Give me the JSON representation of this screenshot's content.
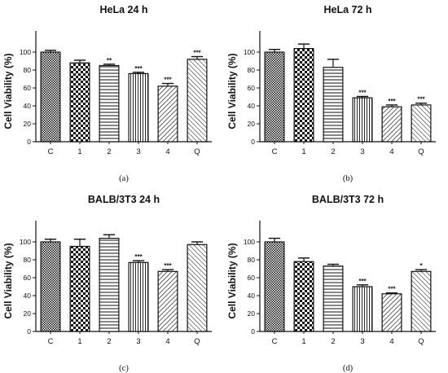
{
  "chart_data": [
    {
      "type": "bar",
      "title": "HeLa 24 h",
      "ylabel": "Cell Viability (%)",
      "xlabel": "",
      "ylim": [
        0,
        120
      ],
      "yticks": [
        0,
        20,
        40,
        60,
        80,
        100
      ],
      "categories": [
        "C",
        "1",
        "2",
        "3",
        "4",
        "Q"
      ],
      "values": [
        100,
        88,
        85,
        76,
        62,
        92
      ],
      "errors": [
        2,
        3,
        1.5,
        1.5,
        3,
        3
      ],
      "significance": [
        "",
        "",
        "**",
        "***",
        "***",
        "***"
      ],
      "caption": "(a)"
    },
    {
      "type": "bar",
      "title": "HeLa 72 h",
      "ylabel": "Cell Viability (%)",
      "xlabel": "",
      "ylim": [
        0,
        120
      ],
      "yticks": [
        0,
        20,
        40,
        60,
        80,
        100
      ],
      "categories": [
        "C",
        "1",
        "2",
        "3",
        "4",
        "Q"
      ],
      "values": [
        100,
        104,
        83,
        49,
        39,
        41
      ],
      "errors": [
        3,
        5,
        9,
        1.5,
        2,
        2
      ],
      "significance": [
        "",
        "",
        "",
        "***",
        "***",
        "***"
      ],
      "caption": "(b)"
    },
    {
      "type": "bar",
      "title": "BALB/3T3 24 h",
      "ylabel": "Cell Viability (%)",
      "xlabel": "",
      "ylim": [
        0,
        120
      ],
      "yticks": [
        0,
        20,
        40,
        60,
        80,
        100
      ],
      "categories": [
        "C",
        "1",
        "2",
        "3",
        "4",
        "Q"
      ],
      "values": [
        100,
        95,
        104,
        77,
        67,
        97
      ],
      "errors": [
        3,
        8,
        4,
        2,
        2,
        3
      ],
      "significance": [
        "",
        "",
        "",
        "***",
        "***",
        ""
      ],
      "caption": "(c)"
    },
    {
      "type": "bar",
      "title": "BALB/3T3 72 h",
      "ylabel": "Cell Viability (%)",
      "xlabel": "",
      "ylim": [
        0,
        120
      ],
      "yticks": [
        0,
        20,
        40,
        60,
        80,
        100
      ],
      "categories": [
        "C",
        "1",
        "2",
        "3",
        "4",
        "Q"
      ],
      "values": [
        100,
        78,
        73,
        50,
        42,
        67
      ],
      "errors": [
        4,
        4,
        2,
        2,
        1,
        2
      ],
      "significance": [
        "",
        "",
        "",
        "***",
        "***",
        "*"
      ],
      "caption": "(d)"
    }
  ],
  "bar_patterns": [
    "checker-dense",
    "checker",
    "horizontal-lines",
    "vertical-lines",
    "diagonal-lines",
    "diagonal-lines-reverse"
  ],
  "colors": {
    "ink": "#111111",
    "background": "#ffffff"
  }
}
